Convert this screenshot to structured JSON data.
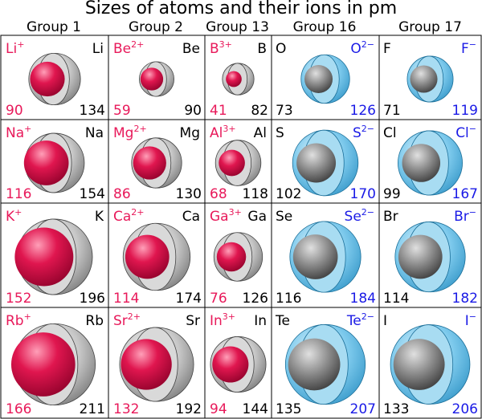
{
  "title": "Sizes of atoms and their ions in pm",
  "groups": [
    "Group 1",
    "Group 2",
    "Group 13",
    "Group 16",
    "Group 17"
  ],
  "colors": {
    "cation": "#e8195a",
    "anion": "#1a1ae6",
    "atom": "#000000",
    "atom_sphere": "#aaaaaa",
    "cation_sphere": "#e0164f",
    "anion_sphere": "#5bbde6"
  },
  "cells": [
    [
      {
        "ion": "Li",
        "charge": "+",
        "atom": "Li",
        "ion_radius": "90",
        "atom_radius": "134",
        "ion_type": "cation"
      },
      {
        "ion": "Be",
        "charge": "2+",
        "atom": "Be",
        "ion_radius": "59",
        "atom_radius": "90",
        "ion_type": "cation"
      },
      {
        "ion": "B",
        "charge": "3+",
        "atom": "B",
        "ion_radius": "41",
        "atom_radius": "82",
        "ion_type": "cation"
      },
      {
        "ion": "O",
        "charge": "2−",
        "atom": "O",
        "ion_radius": "126",
        "atom_radius": "73",
        "ion_type": "anion"
      },
      {
        "ion": "F",
        "charge": "−",
        "atom": "F",
        "ion_radius": "119",
        "atom_radius": "71",
        "ion_type": "anion"
      }
    ],
    [
      {
        "ion": "Na",
        "charge": "+",
        "atom": "Na",
        "ion_radius": "116",
        "atom_radius": "154",
        "ion_type": "cation"
      },
      {
        "ion": "Mg",
        "charge": "2+",
        "atom": "Mg",
        "ion_radius": "86",
        "atom_radius": "130",
        "ion_type": "cation"
      },
      {
        "ion": "Al",
        "charge": "3+",
        "atom": "Al",
        "ion_radius": "68",
        "atom_radius": "118",
        "ion_type": "cation"
      },
      {
        "ion": "S",
        "charge": "2−",
        "atom": "S",
        "ion_radius": "170",
        "atom_radius": "102",
        "ion_type": "anion"
      },
      {
        "ion": "Cl",
        "charge": "−",
        "atom": "Cl",
        "ion_radius": "167",
        "atom_radius": "99",
        "ion_type": "anion"
      }
    ],
    [
      {
        "ion": "K",
        "charge": "+",
        "atom": "K",
        "ion_radius": "152",
        "atom_radius": "196",
        "ion_type": "cation"
      },
      {
        "ion": "Ca",
        "charge": "2+",
        "atom": "Ca",
        "ion_radius": "114",
        "atom_radius": "174",
        "ion_type": "cation"
      },
      {
        "ion": "Ga",
        "charge": "3+",
        "atom": "Ga",
        "ion_radius": "76",
        "atom_radius": "126",
        "ion_type": "cation"
      },
      {
        "ion": "Se",
        "charge": "2−",
        "atom": "Se",
        "ion_radius": "184",
        "atom_radius": "116",
        "ion_type": "anion"
      },
      {
        "ion": "Br",
        "charge": "−",
        "atom": "Br",
        "ion_radius": "182",
        "atom_radius": "114",
        "ion_type": "anion"
      }
    ],
    [
      {
        "ion": "Rb",
        "charge": "+",
        "atom": "Rb",
        "ion_radius": "166",
        "atom_radius": "211",
        "ion_type": "cation"
      },
      {
        "ion": "Sr",
        "charge": "2+",
        "atom": "Sr",
        "ion_radius": "132",
        "atom_radius": "192",
        "ion_type": "cation"
      },
      {
        "ion": "In",
        "charge": "3+",
        "atom": "In",
        "ion_radius": "94",
        "atom_radius": "144",
        "ion_type": "cation"
      },
      {
        "ion": "Te",
        "charge": "2−",
        "atom": "Te",
        "ion_radius": "207",
        "atom_radius": "135",
        "ion_type": "anion"
      },
      {
        "ion": "I",
        "charge": "−",
        "atom": "I",
        "ion_radius": "206",
        "atom_radius": "133",
        "ion_type": "anion"
      }
    ]
  ]
}
